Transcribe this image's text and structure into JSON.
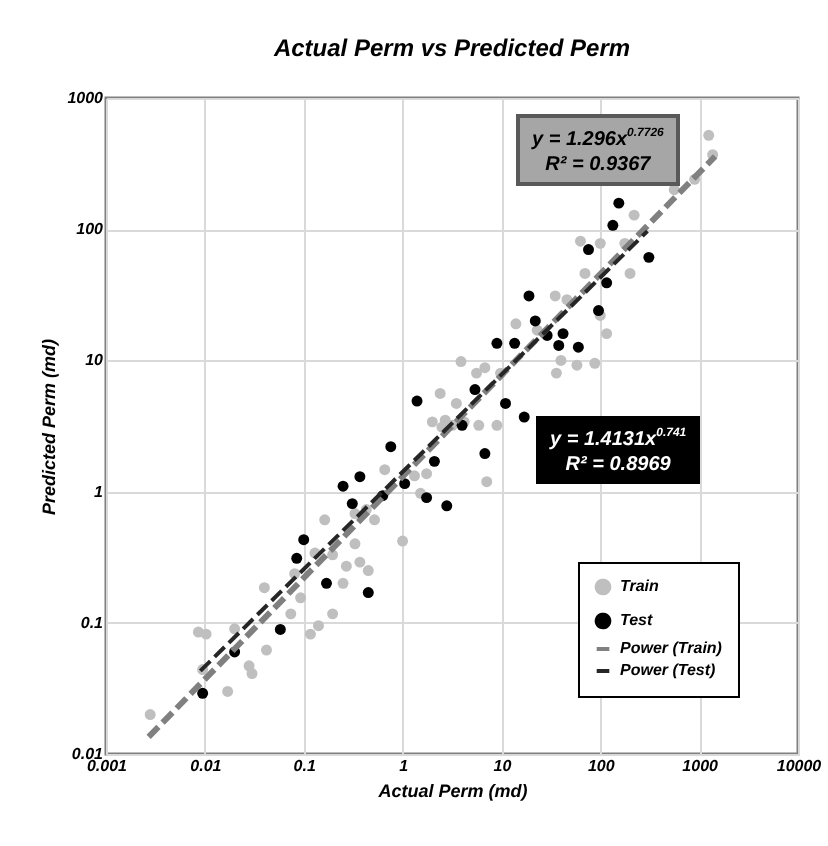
{
  "chart_data": {
    "type": "scatter",
    "title": "Actual Perm vs Predicted Perm",
    "xlabel": "Actual Perm (md)",
    "ylabel": "Predicted Perm (md)",
    "log": "xy",
    "xlim": [
      0.001,
      10000
    ],
    "ylim": [
      0.01,
      1000
    ],
    "xticks": [
      0.001,
      0.01,
      0.1,
      1,
      10,
      100,
      1000,
      10000
    ],
    "yticks": [
      0.01,
      0.1,
      1,
      10,
      100,
      1000
    ],
    "grid": true,
    "legend": "bottom right",
    "annotations": [
      "y = 1.296x$^{0.7726}$",
      "R² = 0.9367",
      "y = 1.4131x$^{0.741}$",
      "R² = 0.8969"
    ],
    "series": [
      {
        "name": "Train",
        "marker": "circle",
        "color": "#bfbfbf",
        "x": [
          0.0028,
          0.0086,
          0.0103,
          0.0095,
          0.017,
          0.02,
          0.028,
          0.03,
          0.042,
          0.04,
          0.074,
          0.093,
          0.081,
          0.117,
          0.141,
          0.196,
          0.163,
          0.13,
          0.196,
          0.25,
          0.27,
          0.37,
          0.45,
          0.33,
          1.0,
          0.52,
          0.66,
          0.33,
          0.43,
          1.32,
          1.52,
          1.75,
          2.7,
          1250,
          1370,
          900,
          560,
          220,
          63,
          100,
          177,
          70,
          200,
          35,
          46,
          14,
          23,
          40,
          58,
          88,
          100,
          116,
          3.9,
          6.8,
          5.6,
          9.8,
          36,
          2,
          3.2,
          5.9,
          9,
          2.4,
          3.5,
          7.1,
          2.5,
          4.2
        ],
        "values": [
          0.02,
          0.085,
          0.082,
          0.044,
          0.03,
          0.09,
          0.047,
          0.041,
          0.062,
          0.185,
          0.117,
          0.155,
          0.237,
          0.082,
          0.095,
          0.117,
          0.61,
          0.34,
          0.33,
          0.2,
          0.27,
          0.29,
          0.25,
          0.4,
          0.42,
          0.61,
          1.47,
          0.68,
          0.73,
          1.32,
          0.97,
          1.37,
          3.5,
          520,
          370,
          240,
          200,
          128,
          81,
          78,
          78,
          46,
          46,
          31,
          29,
          19,
          17,
          10,
          9.2,
          9.5,
          22,
          16,
          9.8,
          8.8,
          8,
          8,
          8,
          3.4,
          3.2,
          3.2,
          3.2,
          5.6,
          4.7,
          1.19,
          3.1,
          3.4
        ]
      },
      {
        "name": "Test",
        "marker": "circle",
        "color": "#000000",
        "x": [
          1.4,
          154,
          134,
          76,
          310,
          116,
          19,
          96,
          22,
          42,
          29,
          9,
          13.6,
          38,
          60,
          5.4,
          11,
          17,
          4,
          6.8,
          2.1,
          1.75,
          2.8,
          0.76,
          0.25,
          0.37,
          0.31,
          0.63,
          1.05,
          0.1,
          0.085,
          0.17,
          0.45,
          0.058,
          0.02,
          0.0095
        ],
        "values": [
          4.9,
          158,
          107,
          70,
          61,
          39,
          31,
          24,
          20,
          16,
          15.5,
          13.5,
          13.5,
          13,
          12.6,
          6,
          4.7,
          3.7,
          3.2,
          1.95,
          1.7,
          0.9,
          0.78,
          2.2,
          1.1,
          1.3,
          0.81,
          0.93,
          1.15,
          0.43,
          0.31,
          0.2,
          0.17,
          0.089,
          0.06,
          0.029
        ]
      },
      {
        "name": "Power (Train)",
        "type": "line",
        "line_style": "dashed",
        "color": "#808080",
        "x": [
          0.0027,
          1450
        ],
        "values": [
          0.0135,
          359
        ]
      },
      {
        "name": "Power (Test)",
        "type": "line",
        "line_style": "dashed",
        "color": "#262626",
        "x": [
          0.009,
          300
        ],
        "values": [
          0.043,
          96.7
        ]
      }
    ]
  }
}
